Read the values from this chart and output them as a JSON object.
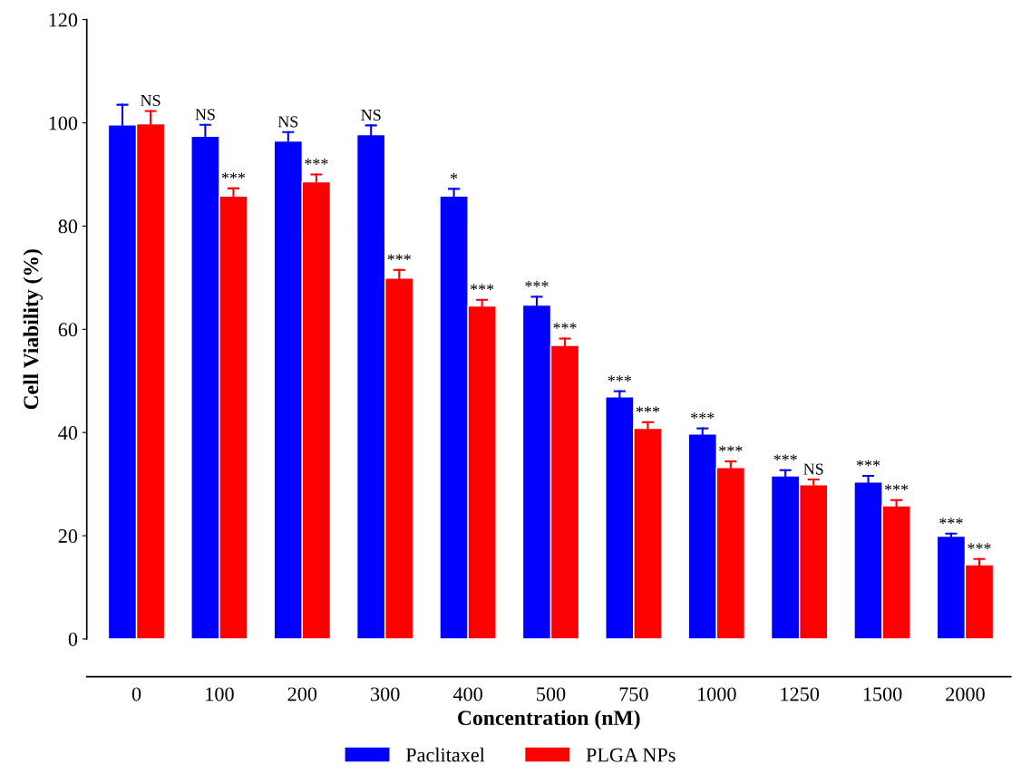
{
  "chart_data": {
    "type": "bar",
    "xlabel": "Concentration (nM)",
    "ylabel": "Cell Viability (%)",
    "categories": [
      "0",
      "100",
      "200",
      "300",
      "400",
      "500",
      "750",
      "1000",
      "1250",
      "1500",
      "2000"
    ],
    "series": [
      {
        "name": "Paclitaxel",
        "color": "#0000ff",
        "values": [
          99.6,
          97.4,
          96.5,
          97.7,
          85.8,
          64.7,
          46.9,
          39.7,
          31.6,
          30.4,
          19.9
        ],
        "errors": [
          [
            99.6,
            103.5
          ],
          [
            97.4,
            99.6
          ],
          [
            96.5,
            98.2
          ],
          [
            97.7,
            99.5
          ],
          [
            85.8,
            87.2
          ],
          [
            64.7,
            66.3
          ],
          [
            46.9,
            48.0
          ],
          [
            39.7,
            40.8
          ],
          [
            31.6,
            32.7
          ],
          [
            30.4,
            31.6
          ],
          [
            19.9,
            20.4
          ]
        ],
        "value_labels": [
          null,
          "NS",
          "NS",
          "NS",
          "*",
          "***",
          "***",
          "***",
          "***",
          "***",
          "***"
        ]
      },
      {
        "name": "PLGA NPs",
        "color": "#ff0000",
        "values": [
          99.8,
          85.8,
          88.6,
          69.9,
          64.5,
          56.9,
          40.8,
          33.2,
          29.9,
          25.8,
          14.4
        ],
        "errors": [
          [
            99.8,
            102.3
          ],
          [
            85.8,
            87.3
          ],
          [
            88.6,
            90.0
          ],
          [
            69.9,
            71.5
          ],
          [
            64.5,
            65.7
          ],
          [
            56.9,
            58.2
          ],
          [
            40.8,
            42.0
          ],
          [
            33.2,
            34.4
          ],
          [
            29.9,
            30.9
          ],
          [
            25.8,
            26.9
          ],
          [
            14.4,
            15.5
          ]
        ],
        "value_labels": [
          "NS",
          "***",
          "***",
          "***",
          "***",
          "***",
          "***",
          "***",
          "NS",
          "***",
          "***"
        ]
      }
    ],
    "ylim": [
      0,
      120
    ],
    "yticks": [
      0,
      20,
      40,
      60,
      80,
      100,
      120
    ],
    "grid": false,
    "legend": "bottom"
  }
}
